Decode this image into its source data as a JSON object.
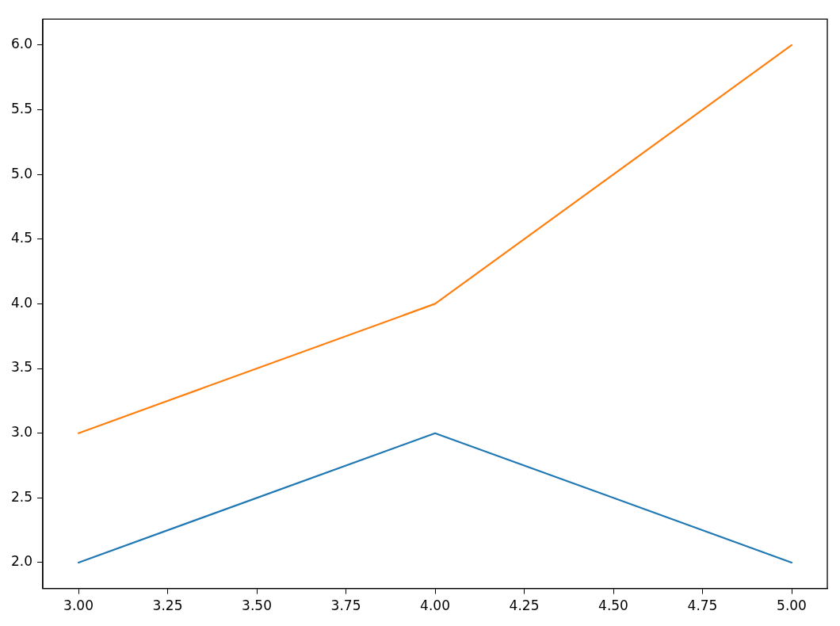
{
  "chart_data": {
    "type": "line",
    "x": [
      3,
      4,
      5
    ],
    "series": [
      {
        "color": "#1f77b4",
        "values": [
          2,
          3,
          2
        ]
      },
      {
        "color": "#ff7f0e",
        "values": [
          3,
          4,
          6
        ]
      }
    ],
    "xlim": [
      2.9,
      5.1
    ],
    "ylim": [
      1.8,
      6.2
    ],
    "xticks": [
      {
        "value": 3,
        "label": "3.00"
      },
      {
        "value": 3.25,
        "label": "3.25"
      },
      {
        "value": 3.5,
        "label": "3.50"
      },
      {
        "value": 3.75,
        "label": "3.75"
      },
      {
        "value": 4,
        "label": "4.00"
      },
      {
        "value": 4.25,
        "label": "4.25"
      },
      {
        "value": 4.5,
        "label": "4.50"
      },
      {
        "value": 4.75,
        "label": "4.75"
      },
      {
        "value": 5,
        "label": "5.00"
      }
    ],
    "yticks": [
      {
        "value": 2,
        "label": "2.0"
      },
      {
        "value": 2.5,
        "label": "2.5"
      },
      {
        "value": 3,
        "label": "3.0"
      },
      {
        "value": 3.5,
        "label": "3.5"
      },
      {
        "value": 4,
        "label": "4.0"
      },
      {
        "value": 4.5,
        "label": "4.5"
      },
      {
        "value": 5,
        "label": "5.0"
      },
      {
        "value": 5.5,
        "label": "5.5"
      },
      {
        "value": 6,
        "label": "6.0"
      }
    ],
    "grid": false,
    "legend": false,
    "marker": "none",
    "line_style": "solid"
  }
}
